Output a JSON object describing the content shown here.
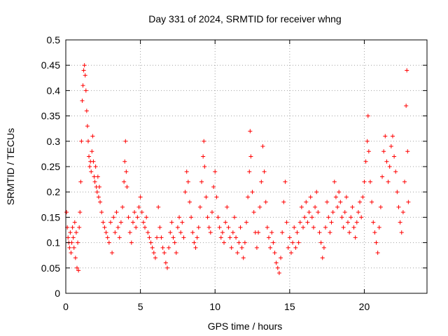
{
  "chart_data": {
    "type": "scatter",
    "title": "Day 331 of 2024, SRMTID for receiver whng",
    "xlabel": "GPS time / hours",
    "ylabel": "SRMTID / TECUs",
    "xlim": [
      0,
      24.2
    ],
    "ylim": [
      0,
      0.5
    ],
    "xticks": [
      0,
      5,
      10,
      15,
      20
    ],
    "yticks": [
      0,
      0.05,
      0.1,
      0.15,
      0.2,
      0.25,
      0.3,
      0.35,
      0.4,
      0.45,
      0.5
    ],
    "xtick_labels": [
      "0",
      "5",
      "10",
      "15",
      "20"
    ],
    "ytick_labels": [
      "0",
      "0.05",
      "0.1",
      "0.15",
      "0.2",
      "0.25",
      "0.3",
      "0.35",
      "0.4",
      "0.45",
      "0.5"
    ],
    "grid": true,
    "marker": "+",
    "color": "#ff0000",
    "series": [
      {
        "name": "SRMTID",
        "points": [
          [
            0.05,
            0.16
          ],
          [
            0.1,
            0.13
          ],
          [
            0.15,
            0.11
          ],
          [
            0.2,
            0.1
          ],
          [
            0.25,
            0.09
          ],
          [
            0.3,
            0.12
          ],
          [
            0.35,
            0.08
          ],
          [
            0.4,
            0.1
          ],
          [
            0.45,
            0.13
          ],
          [
            0.5,
            0.11
          ],
          [
            0.55,
            0.09
          ],
          [
            0.6,
            0.14
          ],
          [
            0.65,
            0.07
          ],
          [
            0.7,
            0.12
          ],
          [
            0.75,
            0.05
          ],
          [
            0.8,
            0.1
          ],
          [
            0.85,
            0.045
          ],
          [
            0.9,
            0.13
          ],
          [
            0.95,
            0.16
          ],
          [
            1.0,
            0.22
          ],
          [
            1.05,
            0.3
          ],
          [
            1.1,
            0.38
          ],
          [
            1.15,
            0.41
          ],
          [
            1.2,
            0.44
          ],
          [
            1.25,
            0.45
          ],
          [
            1.3,
            0.43
          ],
          [
            1.35,
            0.4
          ],
          [
            1.4,
            0.36
          ],
          [
            1.45,
            0.33
          ],
          [
            1.5,
            0.3
          ],
          [
            1.55,
            0.27
          ],
          [
            1.6,
            0.25
          ],
          [
            1.65,
            0.26
          ],
          [
            1.7,
            0.24
          ],
          [
            1.75,
            0.28
          ],
          [
            1.8,
            0.31
          ],
          [
            1.85,
            0.26
          ],
          [
            1.9,
            0.23
          ],
          [
            1.95,
            0.22
          ],
          [
            2.0,
            0.25
          ],
          [
            2.05,
            0.21
          ],
          [
            2.1,
            0.2
          ],
          [
            2.15,
            0.23
          ],
          [
            2.2,
            0.19
          ],
          [
            2.25,
            0.21
          ],
          [
            2.3,
            0.18
          ],
          [
            2.4,
            0.16
          ],
          [
            2.5,
            0.14
          ],
          [
            2.6,
            0.13
          ],
          [
            2.7,
            0.12
          ],
          [
            2.8,
            0.11
          ],
          [
            2.9,
            0.1
          ],
          [
            3.0,
            0.14
          ],
          [
            3.1,
            0.08
          ],
          [
            3.2,
            0.15
          ],
          [
            3.3,
            0.12
          ],
          [
            3.4,
            0.16
          ],
          [
            3.5,
            0.13
          ],
          [
            3.6,
            0.11
          ],
          [
            3.7,
            0.14
          ],
          [
            3.8,
            0.17
          ],
          [
            3.9,
            0.22
          ],
          [
            3.95,
            0.26
          ],
          [
            4.0,
            0.3
          ],
          [
            4.05,
            0.24
          ],
          [
            4.1,
            0.21
          ],
          [
            4.2,
            0.15
          ],
          [
            4.3,
            0.12
          ],
          [
            4.4,
            0.1
          ],
          [
            4.5,
            0.14
          ],
          [
            4.6,
            0.16
          ],
          [
            4.7,
            0.13
          ],
          [
            4.8,
            0.15
          ],
          [
            4.9,
            0.17
          ],
          [
            5.0,
            0.19
          ],
          [
            5.1,
            0.16
          ],
          [
            5.2,
            0.14
          ],
          [
            5.3,
            0.13
          ],
          [
            5.4,
            0.15
          ],
          [
            5.5,
            0.12
          ],
          [
            5.6,
            0.11
          ],
          [
            5.7,
            0.1
          ],
          [
            5.8,
            0.09
          ],
          [
            5.9,
            0.08
          ],
          [
            6.0,
            0.07
          ],
          [
            6.1,
            0.11
          ],
          [
            6.2,
            0.17
          ],
          [
            6.3,
            0.13
          ],
          [
            6.4,
            0.11
          ],
          [
            6.5,
            0.09
          ],
          [
            6.6,
            0.08
          ],
          [
            6.7,
            0.06
          ],
          [
            6.8,
            0.05
          ],
          [
            6.9,
            0.09
          ],
          [
            7.0,
            0.12
          ],
          [
            7.1,
            0.14
          ],
          [
            7.2,
            0.11
          ],
          [
            7.3,
            0.1
          ],
          [
            7.4,
            0.08
          ],
          [
            7.5,
            0.13
          ],
          [
            7.6,
            0.15
          ],
          [
            7.7,
            0.12
          ],
          [
            7.8,
            0.14
          ],
          [
            7.9,
            0.11
          ],
          [
            8.0,
            0.2
          ],
          [
            8.1,
            0.24
          ],
          [
            8.2,
            0.22
          ],
          [
            8.3,
            0.18
          ],
          [
            8.4,
            0.15
          ],
          [
            8.5,
            0.12
          ],
          [
            8.6,
            0.1
          ],
          [
            8.7,
            0.09
          ],
          [
            8.8,
            0.11
          ],
          [
            8.9,
            0.13
          ],
          [
            9.0,
            0.17
          ],
          [
            9.1,
            0.22
          ],
          [
            9.2,
            0.27
          ],
          [
            9.25,
            0.3
          ],
          [
            9.3,
            0.25
          ],
          [
            9.4,
            0.19
          ],
          [
            9.5,
            0.15
          ],
          [
            9.6,
            0.13
          ],
          [
            9.7,
            0.12
          ],
          [
            9.8,
            0.16
          ],
          [
            9.9,
            0.21
          ],
          [
            10.0,
            0.24
          ],
          [
            10.1,
            0.19
          ],
          [
            10.2,
            0.15
          ],
          [
            10.3,
            0.13
          ],
          [
            10.4,
            0.11
          ],
          [
            10.5,
            0.12
          ],
          [
            10.6,
            0.1
          ],
          [
            10.7,
            0.14
          ],
          [
            10.8,
            0.17
          ],
          [
            10.9,
            0.13
          ],
          [
            11.0,
            0.11
          ],
          [
            11.1,
            0.09
          ],
          [
            11.2,
            0.12
          ],
          [
            11.3,
            0.15
          ],
          [
            11.4,
            0.11
          ],
          [
            11.5,
            0.08
          ],
          [
            11.6,
            0.1
          ],
          [
            11.7,
            0.13
          ],
          [
            11.8,
            0.09
          ],
          [
            11.9,
            0.07
          ],
          [
            12.0,
            0.1
          ],
          [
            12.1,
            0.14
          ],
          [
            12.2,
            0.19
          ],
          [
            12.3,
            0.24
          ],
          [
            12.35,
            0.32
          ],
          [
            12.4,
            0.27
          ],
          [
            12.5,
            0.2
          ],
          [
            12.6,
            0.16
          ],
          [
            12.7,
            0.12
          ],
          [
            12.8,
            0.09
          ],
          [
            12.9,
            0.12
          ],
          [
            13.0,
            0.17
          ],
          [
            13.1,
            0.22
          ],
          [
            13.2,
            0.29
          ],
          [
            13.3,
            0.24
          ],
          [
            13.4,
            0.18
          ],
          [
            13.5,
            0.13
          ],
          [
            13.6,
            0.11
          ],
          [
            13.7,
            0.09
          ],
          [
            13.8,
            0.12
          ],
          [
            13.9,
            0.1
          ],
          [
            14.0,
            0.08
          ],
          [
            14.1,
            0.06
          ],
          [
            14.2,
            0.05
          ],
          [
            14.3,
            0.04
          ],
          [
            14.4,
            0.07
          ],
          [
            14.5,
            0.12
          ],
          [
            14.6,
            0.18
          ],
          [
            14.7,
            0.22
          ],
          [
            14.8,
            0.14
          ],
          [
            14.9,
            0.09
          ],
          [
            15.0,
            0.11
          ],
          [
            15.1,
            0.08
          ],
          [
            15.2,
            0.1
          ],
          [
            15.3,
            0.13
          ],
          [
            15.4,
            0.09
          ],
          [
            15.5,
            0.12
          ],
          [
            15.6,
            0.1
          ],
          [
            15.7,
            0.14
          ],
          [
            15.8,
            0.17
          ],
          [
            15.9,
            0.13
          ],
          [
            16.0,
            0.15
          ],
          [
            16.1,
            0.18
          ],
          [
            16.2,
            0.14
          ],
          [
            16.3,
            0.16
          ],
          [
            16.4,
            0.19
          ],
          [
            16.5,
            0.15
          ],
          [
            16.6,
            0.13
          ],
          [
            16.7,
            0.17
          ],
          [
            16.8,
            0.2
          ],
          [
            16.9,
            0.16
          ],
          [
            17.0,
            0.12
          ],
          [
            17.1,
            0.1
          ],
          [
            17.2,
            0.07
          ],
          [
            17.3,
            0.09
          ],
          [
            17.4,
            0.13
          ],
          [
            17.5,
            0.18
          ],
          [
            17.6,
            0.15
          ],
          [
            17.7,
            0.12
          ],
          [
            17.8,
            0.14
          ],
          [
            17.9,
            0.16
          ],
          [
            18.0,
            0.22
          ],
          [
            18.1,
            0.19
          ],
          [
            18.2,
            0.17
          ],
          [
            18.3,
            0.2
          ],
          [
            18.4,
            0.18
          ],
          [
            18.5,
            0.15
          ],
          [
            18.6,
            0.13
          ],
          [
            18.7,
            0.16
          ],
          [
            18.8,
            0.19
          ],
          [
            18.9,
            0.14
          ],
          [
            19.0,
            0.12
          ],
          [
            19.1,
            0.15
          ],
          [
            19.2,
            0.17
          ],
          [
            19.3,
            0.13
          ],
          [
            19.4,
            0.11
          ],
          [
            19.5,
            0.14
          ],
          [
            19.6,
            0.16
          ],
          [
            19.7,
            0.18
          ],
          [
            19.8,
            0.15
          ],
          [
            19.9,
            0.19
          ],
          [
            20.0,
            0.22
          ],
          [
            20.1,
            0.26
          ],
          [
            20.2,
            0.3
          ],
          [
            20.25,
            0.35
          ],
          [
            20.3,
            0.28
          ],
          [
            20.4,
            0.22
          ],
          [
            20.5,
            0.18
          ],
          [
            20.6,
            0.14
          ],
          [
            20.7,
            0.12
          ],
          [
            20.8,
            0.1
          ],
          [
            20.9,
            0.08
          ],
          [
            21.0,
            0.13
          ],
          [
            21.1,
            0.17
          ],
          [
            21.2,
            0.23
          ],
          [
            21.3,
            0.28
          ],
          [
            21.4,
            0.31
          ],
          [
            21.5,
            0.26
          ],
          [
            21.6,
            0.22
          ],
          [
            21.7,
            0.25
          ],
          [
            21.8,
            0.29
          ],
          [
            21.9,
            0.31
          ],
          [
            22.0,
            0.27
          ],
          [
            22.1,
            0.24
          ],
          [
            22.2,
            0.2
          ],
          [
            22.3,
            0.17
          ],
          [
            22.4,
            0.14
          ],
          [
            22.5,
            0.12
          ],
          [
            22.6,
            0.16
          ],
          [
            22.7,
            0.22
          ],
          [
            22.8,
            0.37
          ],
          [
            22.85,
            0.44
          ],
          [
            22.9,
            0.28
          ],
          [
            22.95,
            0.18
          ]
        ]
      }
    ]
  }
}
